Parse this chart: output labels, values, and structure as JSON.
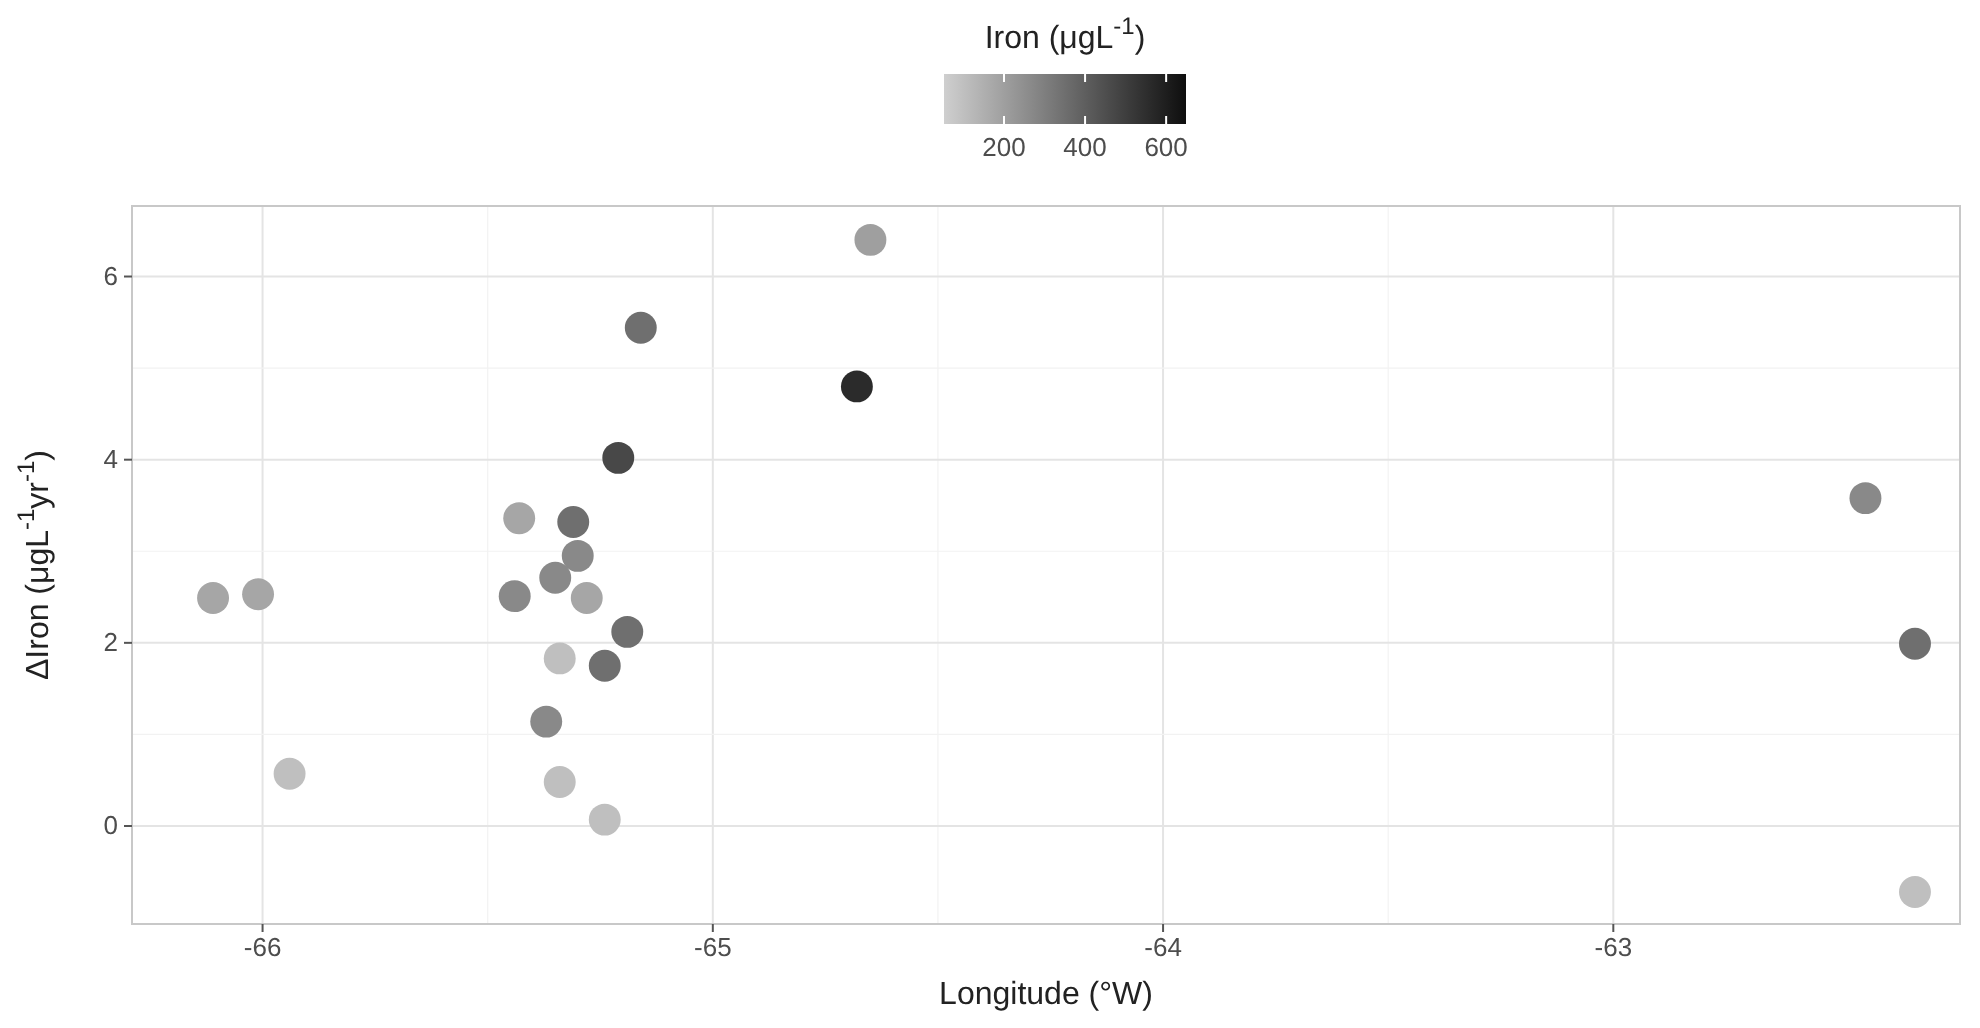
{
  "chart_data": {
    "type": "scatter",
    "xlabel": "Longitude (°W)",
    "ylabel": "ΔIron (μgL$^{-1}$yr$^{-1}$)",
    "clabel": "Iron (μgL$^{-1}$)",
    "x": [
      -66.11,
      -66.01,
      -65.94,
      -65.43,
      -65.44,
      -65.31,
      -65.3,
      -65.35,
      -65.28,
      -65.19,
      -65.34,
      -65.24,
      -65.37,
      -65.34,
      -65.24,
      -65.21,
      -65.16,
      -64.65,
      -64.68,
      -62.44,
      -62.33,
      -62.33
    ],
    "values": [
      2.49,
      2.53,
      0.57,
      3.36,
      2.51,
      3.32,
      2.95,
      2.71,
      2.49,
      2.12,
      1.83,
      1.75,
      1.14,
      0.48,
      0.07,
      4.02,
      5.44,
      6.4,
      4.8,
      3.58,
      1.99,
      -0.72
    ],
    "cvalues": [
      180,
      180,
      100,
      180,
      270,
      350,
      270,
      270,
      180,
      350,
      100,
      350,
      270,
      100,
      100,
      470,
      350,
      200,
      560,
      270,
      350,
      100
    ],
    "clim": [
      52,
      649
    ],
    "cticks": [
      200,
      400,
      600
    ],
    "xlim": [
      -66.29,
      -62.23
    ],
    "xticks": [
      -66,
      -65,
      -64,
      -63
    ],
    "ylim": [
      -1.07,
      6.77
    ],
    "yticks": [
      0,
      2,
      4,
      6
    ],
    "grid": true,
    "marker": "circle"
  }
}
